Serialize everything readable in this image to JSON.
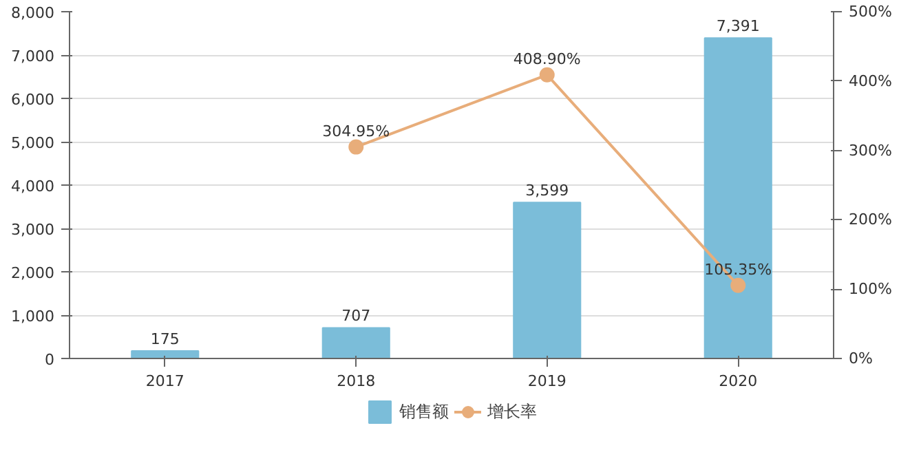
{
  "chart_data": {
    "type": "bar",
    "categories": [
      "2017",
      "2018",
      "2019",
      "2020"
    ],
    "series": [
      {
        "name": "销售额",
        "color": "#7bbdd9",
        "values": [
          175,
          707,
          3599,
          7391
        ],
        "value_labels": [
          "175",
          "707",
          "3,599",
          "7,391"
        ]
      },
      {
        "name": "增长率",
        "type": "line",
        "axis": "y2",
        "color": "#e8ad7a",
        "marker": "circle",
        "values": [
          null,
          304.95,
          408.9,
          105.35
        ],
        "value_labels": [
          null,
          "304.95%",
          "408.90%",
          "105.35%"
        ]
      }
    ],
    "ylim": [
      0,
      8000
    ],
    "yticks": [
      0,
      {
        "value": 1000,
        "label": "1,000"
      },
      {
        "value": 2000,
        "label": "2,000"
      },
      {
        "value": 3000,
        "label": "3,000"
      },
      {
        "value": 4000,
        "label": "4,000"
      },
      {
        "value": 5000,
        "label": "5,000"
      },
      {
        "value": 6000,
        "label": "6,000"
      },
      {
        "value": 7000,
        "label": "7,000"
      },
      {
        "value": 8000,
        "label": "8,000"
      }
    ],
    "y2lim": [
      0,
      500
    ],
    "y2ticks": [
      {
        "value": 0,
        "label": "0%"
      },
      {
        "value": 100,
        "label": "100%"
      },
      {
        "value": 200,
        "label": "200%"
      },
      {
        "value": 300,
        "label": "300%"
      },
      {
        "value": 400,
        "label": "400%"
      },
      {
        "value": 500,
        "label": "500%"
      }
    ],
    "grid": "y",
    "legend": "bottom"
  }
}
